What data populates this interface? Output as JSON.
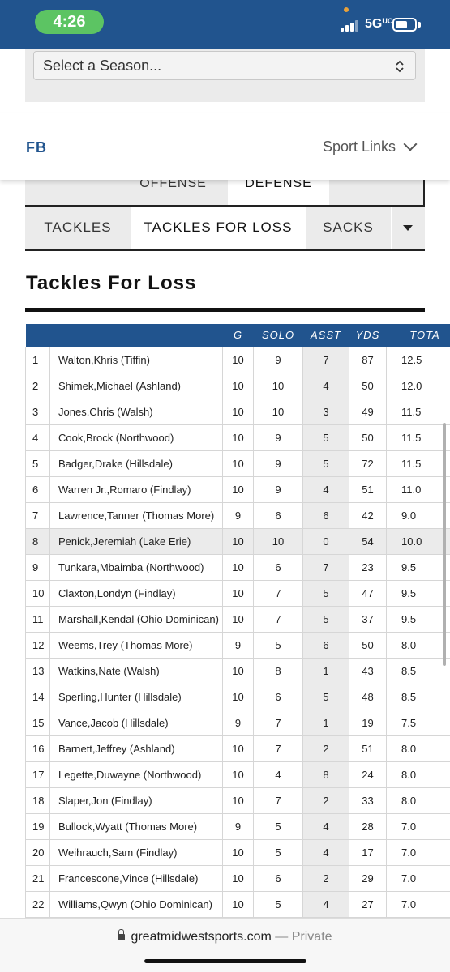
{
  "status_bar": {
    "time": "4:26",
    "network": "5G",
    "network_suffix": "UC"
  },
  "season": {
    "placeholder": "Select a Season..."
  },
  "header": {
    "sport": "FB",
    "links_label": "Sport Links"
  },
  "tabs_top": [
    "OFFENSE",
    "DEFENSE"
  ],
  "tabs_top_active": "DEFENSE",
  "tabs_sub": [
    "TACKLES",
    "TACKLES FOR LOSS",
    "SACKS"
  ],
  "tabs_sub_active": "TACKLES FOR LOSS",
  "section_title": "Tackles For Loss",
  "table": {
    "columns": [
      "",
      "",
      "G",
      "SOLO",
      "ASST",
      "YDS",
      "TOTA"
    ],
    "rows": [
      [
        "1",
        "Walton,Khris (Tiffin)",
        "10",
        "9",
        "7",
        "87",
        "12.5"
      ],
      [
        "2",
        "Shimek,Michael (Ashland)",
        "10",
        "10",
        "4",
        "50",
        "12.0"
      ],
      [
        "3",
        "Jones,Chris (Walsh)",
        "10",
        "10",
        "3",
        "49",
        "11.5"
      ],
      [
        "4",
        "Cook,Brock (Northwood)",
        "10",
        "9",
        "5",
        "50",
        "11.5"
      ],
      [
        "5",
        "Badger,Drake (Hillsdale)",
        "10",
        "9",
        "5",
        "72",
        "11.5"
      ],
      [
        "6",
        "Warren Jr.,Romaro (Findlay)",
        "10",
        "9",
        "4",
        "51",
        "11.0"
      ],
      [
        "7",
        "Lawrence,Tanner (Thomas More)",
        "9",
        "6",
        "6",
        "42",
        "9.0"
      ],
      [
        "8",
        "Penick,Jeremiah (Lake Erie)",
        "10",
        "10",
        "0",
        "54",
        "10.0"
      ],
      [
        "9",
        "Tunkara,Mbaimba (Northwood)",
        "10",
        "6",
        "7",
        "23",
        "9.5"
      ],
      [
        "10",
        "Claxton,Londyn (Findlay)",
        "10",
        "7",
        "5",
        "47",
        "9.5"
      ],
      [
        "11",
        "Marshall,Kendal (Ohio Dominican)",
        "10",
        "7",
        "5",
        "37",
        "9.5"
      ],
      [
        "12",
        "Weems,Trey (Thomas More)",
        "9",
        "5",
        "6",
        "50",
        "8.0"
      ],
      [
        "13",
        "Watkins,Nate (Walsh)",
        "10",
        "8",
        "1",
        "43",
        "8.5"
      ],
      [
        "14",
        "Sperling,Hunter (Hillsdale)",
        "10",
        "6",
        "5",
        "48",
        "8.5"
      ],
      [
        "15",
        "Vance,Jacob (Hillsdale)",
        "9",
        "7",
        "1",
        "19",
        "7.5"
      ],
      [
        "16",
        "Barnett,Jeffrey (Ashland)",
        "10",
        "7",
        "2",
        "51",
        "8.0"
      ],
      [
        "17",
        "Legette,Duwayne (Northwood)",
        "10",
        "4",
        "8",
        "24",
        "8.0"
      ],
      [
        "18",
        "Slaper,Jon (Findlay)",
        "10",
        "7",
        "2",
        "33",
        "8.0"
      ],
      [
        "19",
        "Bullock,Wyatt (Thomas More)",
        "9",
        "5",
        "4",
        "28",
        "7.0"
      ],
      [
        "20",
        "Weihrauch,Sam (Findlay)",
        "10",
        "5",
        "4",
        "17",
        "7.0"
      ],
      [
        "21",
        "Francescone,Vince (Hillsdale)",
        "10",
        "6",
        "2",
        "29",
        "7.0"
      ],
      [
        "22",
        "Williams,Qwyn (Ohio Dominican)",
        "10",
        "5",
        "4",
        "27",
        "7.0"
      ]
    ],
    "highlighted_row": 8
  },
  "browser": {
    "domain": "greatmidwestsports.com",
    "separator": "—",
    "mode": "Private"
  },
  "colors": {
    "brand_blue": "#21548e",
    "time_pill": "#5cc463",
    "tab_bg": "#ebebeb"
  }
}
